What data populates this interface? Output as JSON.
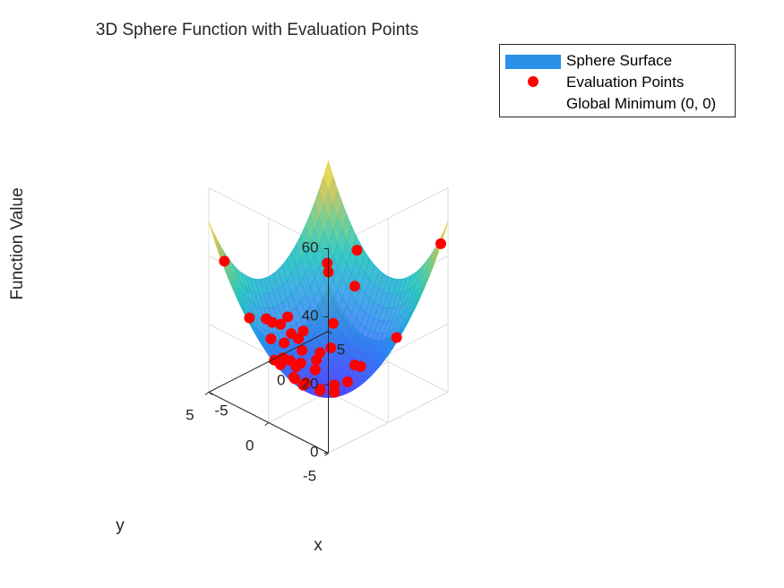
{
  "chart_data": {
    "type": "surface3d",
    "title": "3D Sphere Function with Evaluation Points",
    "xlabel": "x",
    "ylabel": "y",
    "zlabel": "Function Value",
    "xlim": [
      -5,
      5
    ],
    "ylim": [
      -5,
      5
    ],
    "zlim": [
      0,
      60
    ],
    "xticks": [
      "-5",
      "0",
      "5"
    ],
    "yticks": [
      "-5",
      "0",
      "5"
    ],
    "zticks": [
      "0",
      "20",
      "40",
      "60"
    ],
    "grid": true,
    "legend_position": "top-right",
    "surface": {
      "function": "x^2 + y^2",
      "name": "Sphere Surface",
      "colormap": "parula",
      "transparent": true
    },
    "series": [
      {
        "name": "Evaluation Points",
        "color": "#ff0000",
        "points": [
          {
            "x": -4.8,
            "y": -2.3,
            "z": 28.4
          },
          {
            "x": -4.2,
            "y": 4.5,
            "z": 37.9
          },
          {
            "x": -1.2,
            "y": -3.9,
            "z": 16.7
          },
          {
            "x": -3.5,
            "y": -3.7,
            "z": 25.9
          },
          {
            "x": 4.5,
            "y": -4.9,
            "z": 44.3
          },
          {
            "x": -3.8,
            "y": 0.2,
            "z": 14.5
          },
          {
            "x": -3.2,
            "y": -0.4,
            "z": 10.4
          },
          {
            "x": -3.3,
            "y": 3.3,
            "z": 21.8
          },
          {
            "x": -0.8,
            "y": 2.4,
            "z": 6.4
          },
          {
            "x": -2.5,
            "y": 2.0,
            "z": 10.3
          },
          {
            "x": 2.8,
            "y": -2.9,
            "z": 16.2
          },
          {
            "x": 0.4,
            "y": 3.8,
            "z": 14.6
          },
          {
            "x": 4.8,
            "y": 2.4,
            "z": 28.8
          },
          {
            "x": 2.6,
            "y": 2.2,
            "z": 11.6
          },
          {
            "x": 4.1,
            "y": 1.9,
            "z": 20.4
          },
          {
            "x": 3.4,
            "y": 3.4,
            "z": 23.1
          },
          {
            "x": 3.5,
            "y": 3.6,
            "z": 25.2
          },
          {
            "x": 0.7,
            "y": 0.2,
            "z": 0.5
          },
          {
            "x": 1.2,
            "y": -0.4,
            "z": 1.6
          },
          {
            "x": 2.1,
            "y": -0.1,
            "z": 4.4
          },
          {
            "x": 0.2,
            "y": -0.3,
            "z": 0.1
          },
          {
            "x": -0.3,
            "y": 0.4,
            "z": 0.3
          },
          {
            "x": -0.2,
            "y": 0.5,
            "z": 0.3
          },
          {
            "x": -1.3,
            "y": 2.5,
            "z": 7.9
          },
          {
            "x": -1.1,
            "y": 1.0,
            "z": 2.2
          },
          {
            "x": -0.7,
            "y": 1.2,
            "z": 1.9
          },
          {
            "x": -0.1,
            "y": 2.2,
            "z": 4.8
          },
          {
            "x": 0.5,
            "y": 1.6,
            "z": 2.8
          },
          {
            "x": 0.9,
            "y": 1.9,
            "z": 4.4
          },
          {
            "x": 1.3,
            "y": 2.0,
            "z": 5.7
          },
          {
            "x": -1.6,
            "y": 3.2,
            "z": 12.8
          },
          {
            "x": -1.3,
            "y": 3.9,
            "z": 16.9
          },
          {
            "x": -0.9,
            "y": 3.8,
            "z": 15.3
          },
          {
            "x": -0.3,
            "y": 3.7,
            "z": 13.8
          },
          {
            "x": -0.6,
            "y": 3.1,
            "z": 10.0
          },
          {
            "x": 0.2,
            "y": 3.3,
            "z": 10.9
          },
          {
            "x": 1.0,
            "y": 3.1,
            "z": 10.6
          },
          {
            "x": -0.6,
            "y": 2.1,
            "z": 4.8
          },
          {
            "x": -1.4,
            "y": 1.5,
            "z": 4.2
          },
          {
            "x": 0.4,
            "y": 2.6,
            "z": 6.9
          }
        ]
      }
    ],
    "legend": [
      "Sphere Surface",
      "Evaluation Points",
      "Global Minimum (0, 0)"
    ]
  },
  "colors": {
    "surface_swatch": "#2b90e8",
    "points": "#ff0000",
    "axis": "#262626",
    "grid": "#dedede"
  }
}
